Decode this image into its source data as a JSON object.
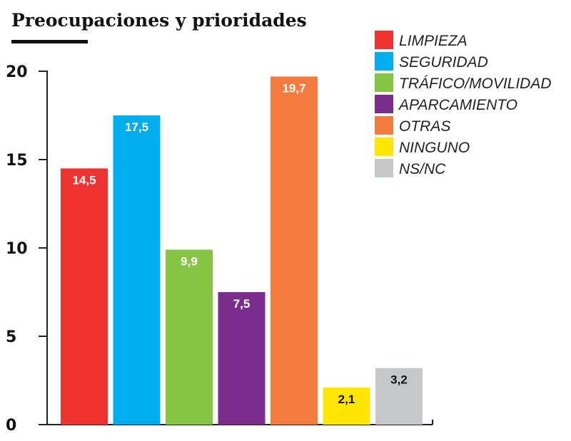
{
  "chart_data": {
    "type": "bar",
    "title": "Preocupaciones y prioridades",
    "categories": [
      "LIMPIEZA",
      "SEGURIDAD",
      "TRÁFICO/MOVILIDAD",
      "APARCAMIENTO",
      "OTRAS",
      "NINGUNO",
      "NS/NC"
    ],
    "values": [
      14.5,
      17.5,
      9.9,
      7.5,
      19.7,
      2.1,
      3.2
    ],
    "value_labels": [
      "14,5",
      "17,5",
      "9,9",
      "7,5",
      "19,7",
      "2,1",
      "3,2"
    ],
    "colors": [
      "#ee3330",
      "#00aeef",
      "#86c543",
      "#7b2d8e",
      "#f47b3e",
      "#ffe600",
      "#c5c7c9"
    ],
    "value_label_colors": [
      "#ffffff",
      "#ffffff",
      "#ffffff",
      "#ffffff",
      "#ffffff",
      "#111111",
      "#111111"
    ],
    "yticks": [
      0,
      5,
      10,
      15,
      20
    ],
    "ylim": [
      0,
      20
    ],
    "grid": false,
    "legend": "top-right",
    "xlabel": "",
    "ylabel": ""
  }
}
